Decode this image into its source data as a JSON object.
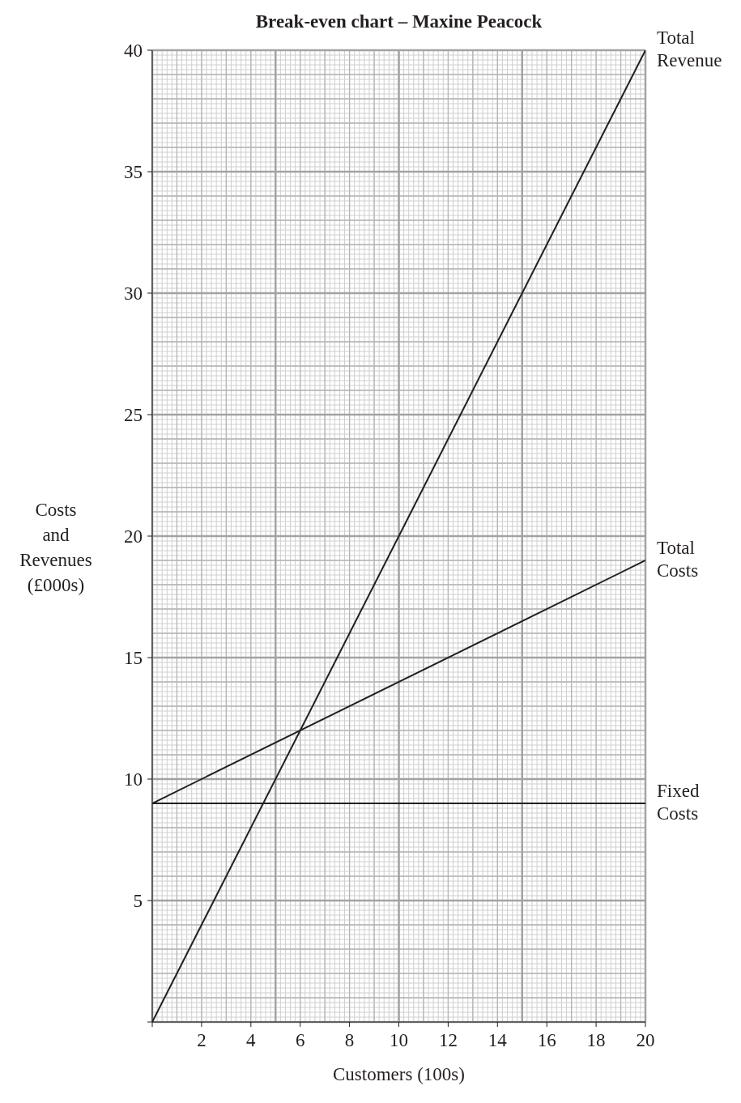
{
  "chart_data": {
    "type": "line",
    "title": "Break-even chart – Maxine Peacock",
    "xlabel": "Customers (100s)",
    "ylabel": "Costs and Revenues (£000s)",
    "x": [
      0,
      20
    ],
    "series": [
      {
        "name": "Total Revenue",
        "color": "#231f20",
        "values": [
          0,
          40
        ]
      },
      {
        "name": "Total Costs",
        "color": "#231f20",
        "values": [
          9,
          19
        ]
      },
      {
        "name": "Fixed Costs",
        "color": "#231f20",
        "values": [
          9,
          9
        ]
      }
    ],
    "xlim": [
      0,
      20
    ],
    "ylim": [
      0,
      40
    ],
    "xticks": [
      {
        "value": 0,
        "label": null
      },
      2,
      4,
      6,
      8,
      10,
      12,
      14,
      16,
      18,
      20
    ],
    "yticks": [
      {
        "value": 0,
        "label": null
      },
      5,
      10,
      15,
      20,
      25,
      30,
      35,
      40
    ],
    "grid": true,
    "legend": false,
    "marker": "none",
    "line_style": "solid"
  }
}
